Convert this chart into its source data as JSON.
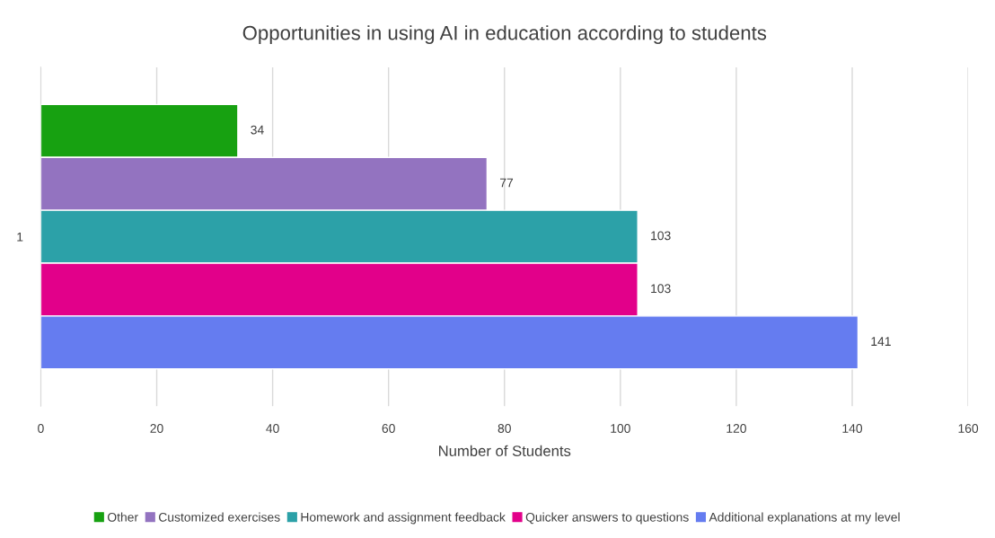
{
  "chart_data": {
    "type": "bar",
    "orientation": "horizontal",
    "title": "Opportunities in using AI in education according to students",
    "xlabel": "Number of Students",
    "categories": [
      "1"
    ],
    "series": [
      {
        "name": "Other",
        "color": "#17a111",
        "values": [
          34
        ]
      },
      {
        "name": "Customized exercises",
        "color": "#9373c0",
        "values": [
          77
        ]
      },
      {
        "name": "Homework and assignment feedback",
        "color": "#2ca1a8",
        "values": [
          103
        ]
      },
      {
        "name": "Quicker answers to questions",
        "color": "#e2008a",
        "values": [
          103
        ]
      },
      {
        "name": "Additional explanations at my level",
        "color": "#657cf0",
        "values": [
          141
        ]
      }
    ],
    "xlim": [
      0,
      160
    ],
    "xticks": [
      0,
      20,
      40,
      60,
      80,
      100,
      120,
      140,
      160
    ],
    "grid": "x",
    "legend": "bottom",
    "data_labels": true
  }
}
